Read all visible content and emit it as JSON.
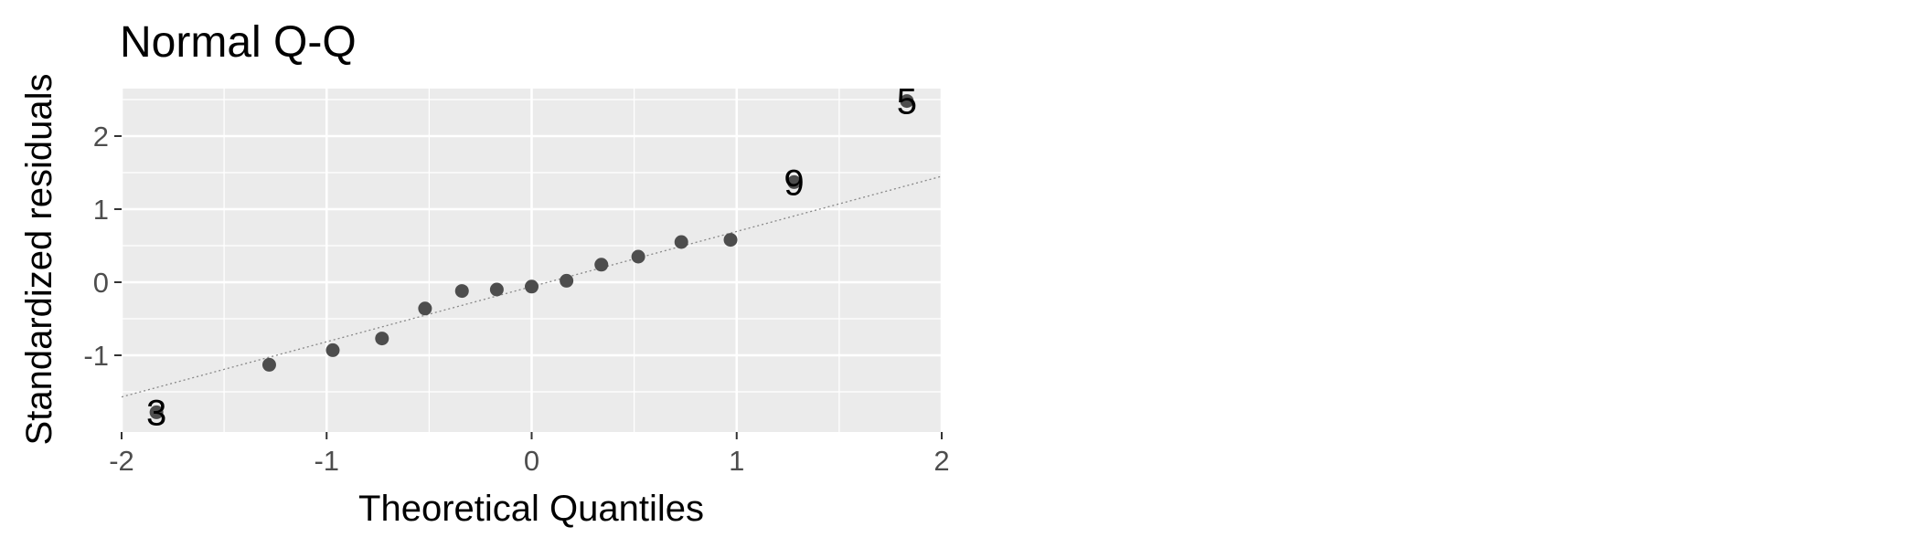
{
  "chart_data": {
    "type": "scatter",
    "title": "Normal Q-Q",
    "xlabel": "Theoretical Quantiles",
    "ylabel": "Standardized residuals",
    "xlim": [
      -2.0,
      2.0
    ],
    "ylim": [
      -2.05,
      2.65
    ],
    "x_ticks": [
      -2,
      -1,
      0,
      1,
      2
    ],
    "y_ticks": [
      -1,
      0,
      1,
      2
    ],
    "x_tick_labels": [
      "-2",
      "-1",
      "0",
      "1",
      "2"
    ],
    "y_tick_labels": [
      "-1",
      "0",
      "1",
      "2"
    ],
    "grid": true,
    "background": "#ebebeb",
    "grid_color": "#ffffff",
    "point_color": "#4d4d4d",
    "reference_line": {
      "x": [
        -2.0,
        2.0
      ],
      "y": [
        -1.57,
        1.45
      ],
      "style": "dotted",
      "color": "#888888"
    },
    "points": [
      {
        "x": -1.83,
        "y": -1.78,
        "label": "3"
      },
      {
        "x": -1.28,
        "y": -1.13
      },
      {
        "x": -0.97,
        "y": -0.93
      },
      {
        "x": -0.73,
        "y": -0.77
      },
      {
        "x": -0.52,
        "y": -0.36
      },
      {
        "x": -0.34,
        "y": -0.12
      },
      {
        "x": -0.17,
        "y": -0.1
      },
      {
        "x": 0.0,
        "y": -0.06
      },
      {
        "x": 0.17,
        "y": 0.02
      },
      {
        "x": 0.34,
        "y": 0.24
      },
      {
        "x": 0.52,
        "y": 0.35
      },
      {
        "x": 0.73,
        "y": 0.55
      },
      {
        "x": 0.97,
        "y": 0.58
      },
      {
        "x": 1.28,
        "y": 1.37,
        "label": "9"
      },
      {
        "x": 1.83,
        "y": 2.48,
        "label": "5"
      }
    ]
  }
}
